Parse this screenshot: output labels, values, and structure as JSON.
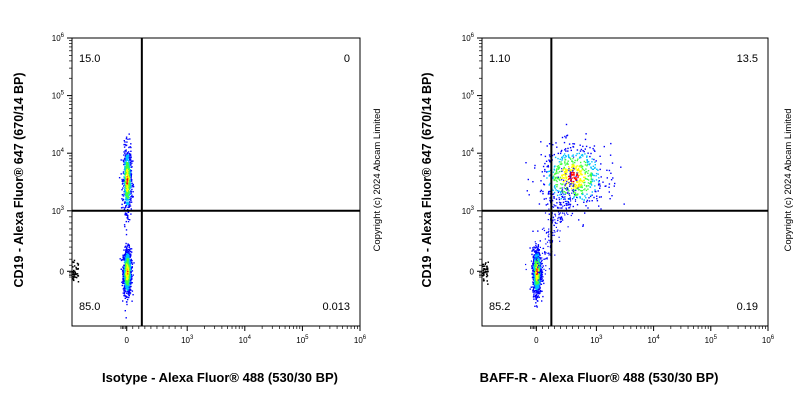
{
  "chart_data": [
    {
      "type": "scatter",
      "subtype": "flow-cytometry-density-dot-plot",
      "xlabel": "Isotype - Alexa Fluor® 488 (530/30 BP)",
      "ylabel": "CD19 - Alexa Fluor® 647 (670/14 BP)",
      "x_scale": "biexponential",
      "y_scale": "biexponential",
      "x_ticks": [
        "0",
        "10^3",
        "10^4",
        "10^5",
        "10^6"
      ],
      "y_ticks": [
        "0",
        "10^3",
        "10^4",
        "10^5",
        "10^6"
      ],
      "gate_x": 250,
      "gate_y": 1000,
      "quadrants": {
        "upper_left": "15.0",
        "upper_right": "0",
        "lower_left": "85.0",
        "lower_right": "0.013"
      },
      "populations": [
        {
          "name": "",
          "x_center": 0,
          "y_center": 0,
          "x_spread": 0.06,
          "y_spread": 0.18,
          "relative_density": "high"
        },
        {
          "name": "",
          "x_center": 0,
          "y_center": 3500,
          "x_spread": 0.06,
          "y_spread": 0.25,
          "relative_density": "medium"
        }
      ]
    },
    {
      "type": "scatter",
      "subtype": "flow-cytometry-density-dot-plot",
      "xlabel": "BAFF-R - Alexa Fluor® 488 (530/30 BP)",
      "ylabel": "CD19 - Alexa Fluor® 647 (670/14 BP)",
      "x_scale": "biexponential",
      "y_scale": "biexponential",
      "x_ticks": [
        "0",
        "10^3",
        "10^4",
        "10^5",
        "10^6"
      ],
      "y_ticks": [
        "0",
        "10^3",
        "10^4",
        "10^5",
        "10^6"
      ],
      "gate_x": 250,
      "gate_y": 1000,
      "quadrants": {
        "upper_left": "1.10",
        "upper_right": "13.5",
        "lower_left": "85.2",
        "lower_right": "0.19"
      },
      "populations": [
        {
          "name": "",
          "x_center": 0,
          "y_center": 0,
          "x_spread": 0.06,
          "y_spread": 0.18,
          "relative_density": "high"
        },
        {
          "name": "",
          "x_center": 600,
          "y_center": 4000,
          "x_spread": 0.3,
          "y_spread": 0.25,
          "relative_density": "medium"
        }
      ]
    }
  ],
  "copyright": "Copyright (c) 2024 Abcam Limited",
  "colors": {
    "density_low": "#0000ff",
    "density_mid": "#00c0ff",
    "density_midhigh": "#40ff40",
    "density_high": "#ffff00",
    "density_peak": "#ff0000",
    "gate": "#000000"
  }
}
